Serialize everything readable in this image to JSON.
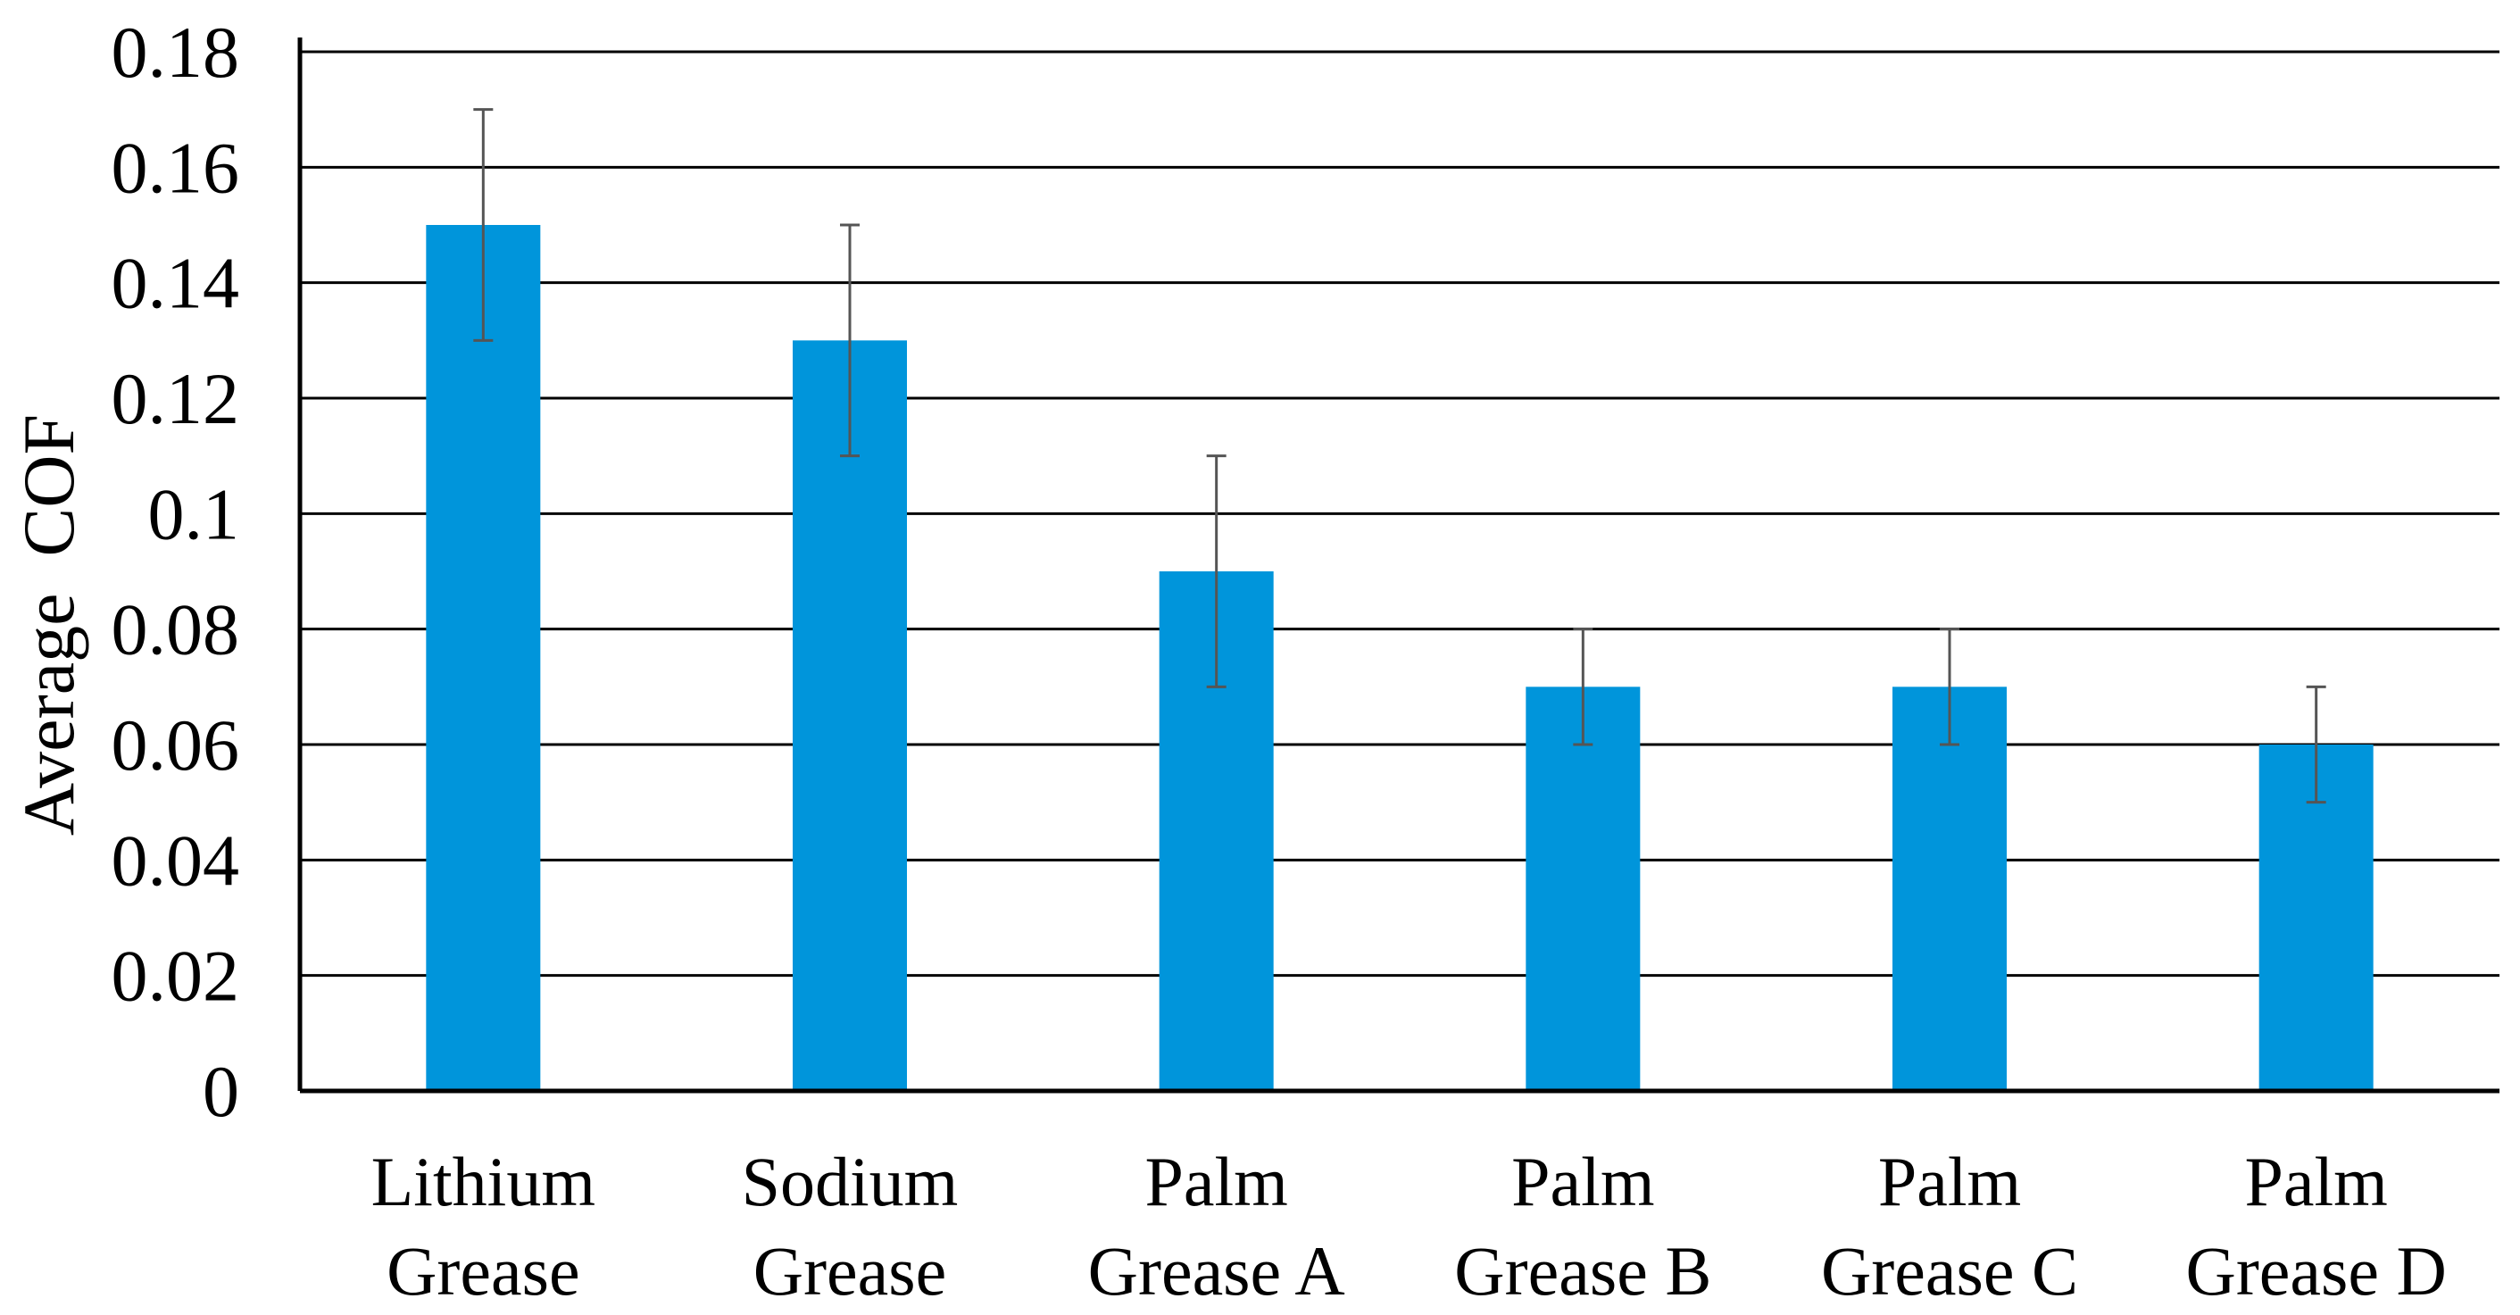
{
  "chart_data": {
    "type": "bar",
    "title": "",
    "xlabel": "",
    "ylabel": "Average  COF",
    "ylim": [
      0,
      0.18
    ],
    "ytick_step": 0.02,
    "yticks": [
      "0",
      "0.02",
      "0.04",
      "0.06",
      "0.08",
      "0.1",
      "0.12",
      "0.14",
      "0.16",
      "0.18"
    ],
    "grid": true,
    "legend": "none",
    "categories": [
      [
        "Lithium",
        "Grease"
      ],
      [
        "Sodium",
        "Grease"
      ],
      [
        "Palm",
        "Grease A"
      ],
      [
        "Palm",
        "Grease B"
      ],
      [
        "Palm",
        "Grease C"
      ],
      [
        "Palm",
        "Grease D"
      ]
    ],
    "series": [
      {
        "name": "Average COF",
        "values": [
          0.15,
          0.13,
          0.09,
          0.07,
          0.07,
          0.06
        ],
        "errors": [
          0.02,
          0.02,
          0.02,
          0.01,
          0.01,
          0.01
        ]
      }
    ],
    "colors": {
      "bar": "#0095DB",
      "grid": "#000000",
      "axis": "#000000",
      "error_bar": "#555555"
    }
  }
}
